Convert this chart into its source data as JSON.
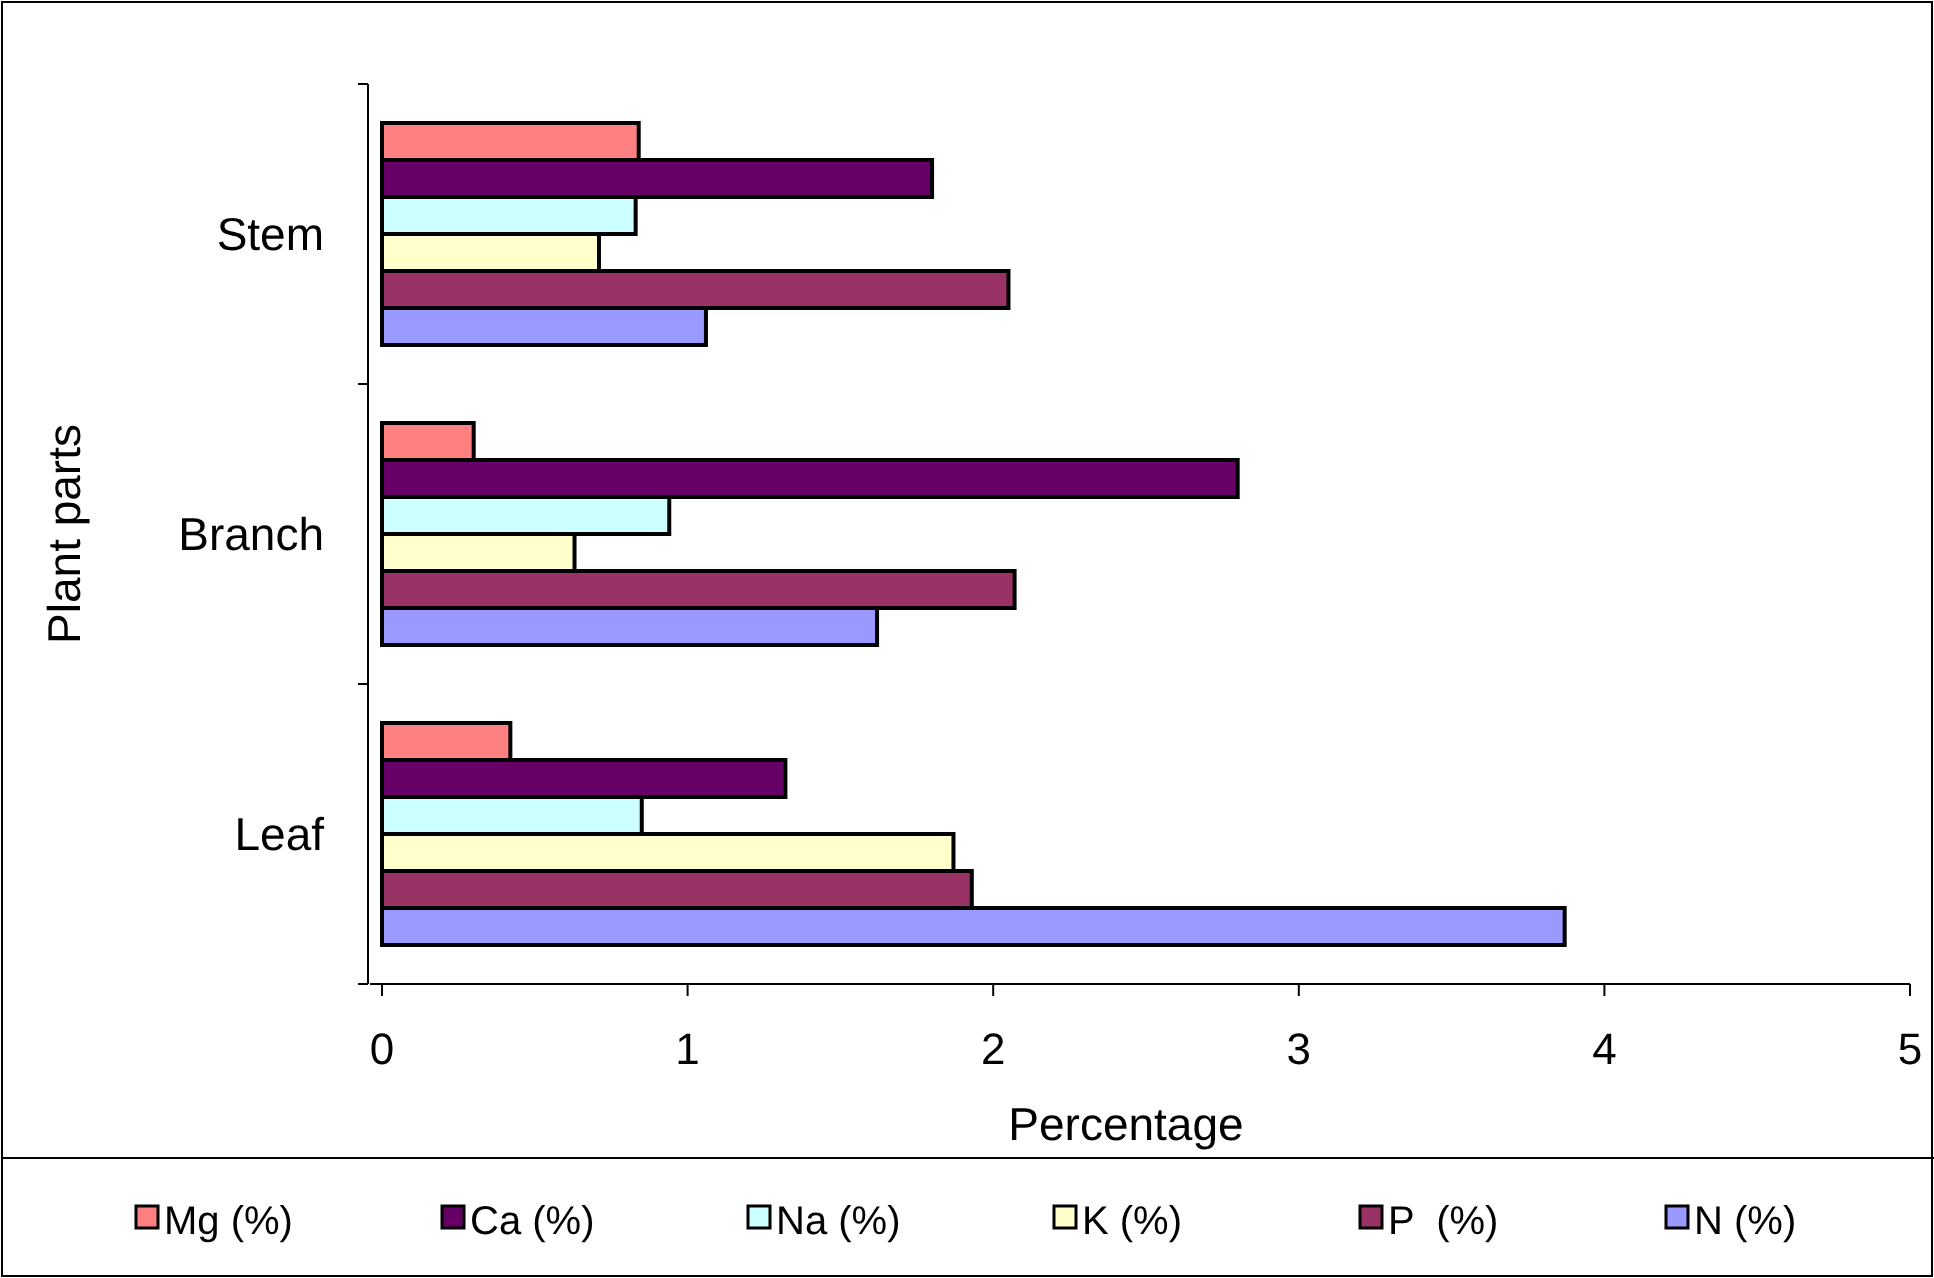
{
  "chart_data": {
    "type": "bar",
    "orientation": "horizontal",
    "xlabel": "Percentage",
    "ylabel": "Plant parts",
    "categories": [
      "Stem",
      "Branch",
      "Leaf"
    ],
    "series": [
      {
        "name": "Mg (%)",
        "color": "#ff8080",
        "values": [
          0.84,
          0.3,
          0.42
        ]
      },
      {
        "name": "Ca (%)",
        "color": "#660066",
        "values": [
          1.8,
          2.8,
          1.32
        ]
      },
      {
        "name": "Na (%)",
        "color": "#ccffff",
        "values": [
          0.83,
          0.94,
          0.85
        ]
      },
      {
        "name": "K (%)",
        "color": "#ffffcc",
        "values": [
          0.71,
          0.63,
          1.87
        ]
      },
      {
        "name": "P  (%)",
        "color": "#993366",
        "values": [
          2.05,
          2.07,
          1.93
        ]
      },
      {
        "name": "N (%)",
        "color": "#9999ff",
        "values": [
          1.06,
          1.62,
          3.87
        ]
      }
    ],
    "xlim": [
      0,
      5
    ],
    "xticks": [
      0,
      1,
      2,
      3,
      4,
      5
    ],
    "legend": "bottom",
    "grid": false
  }
}
